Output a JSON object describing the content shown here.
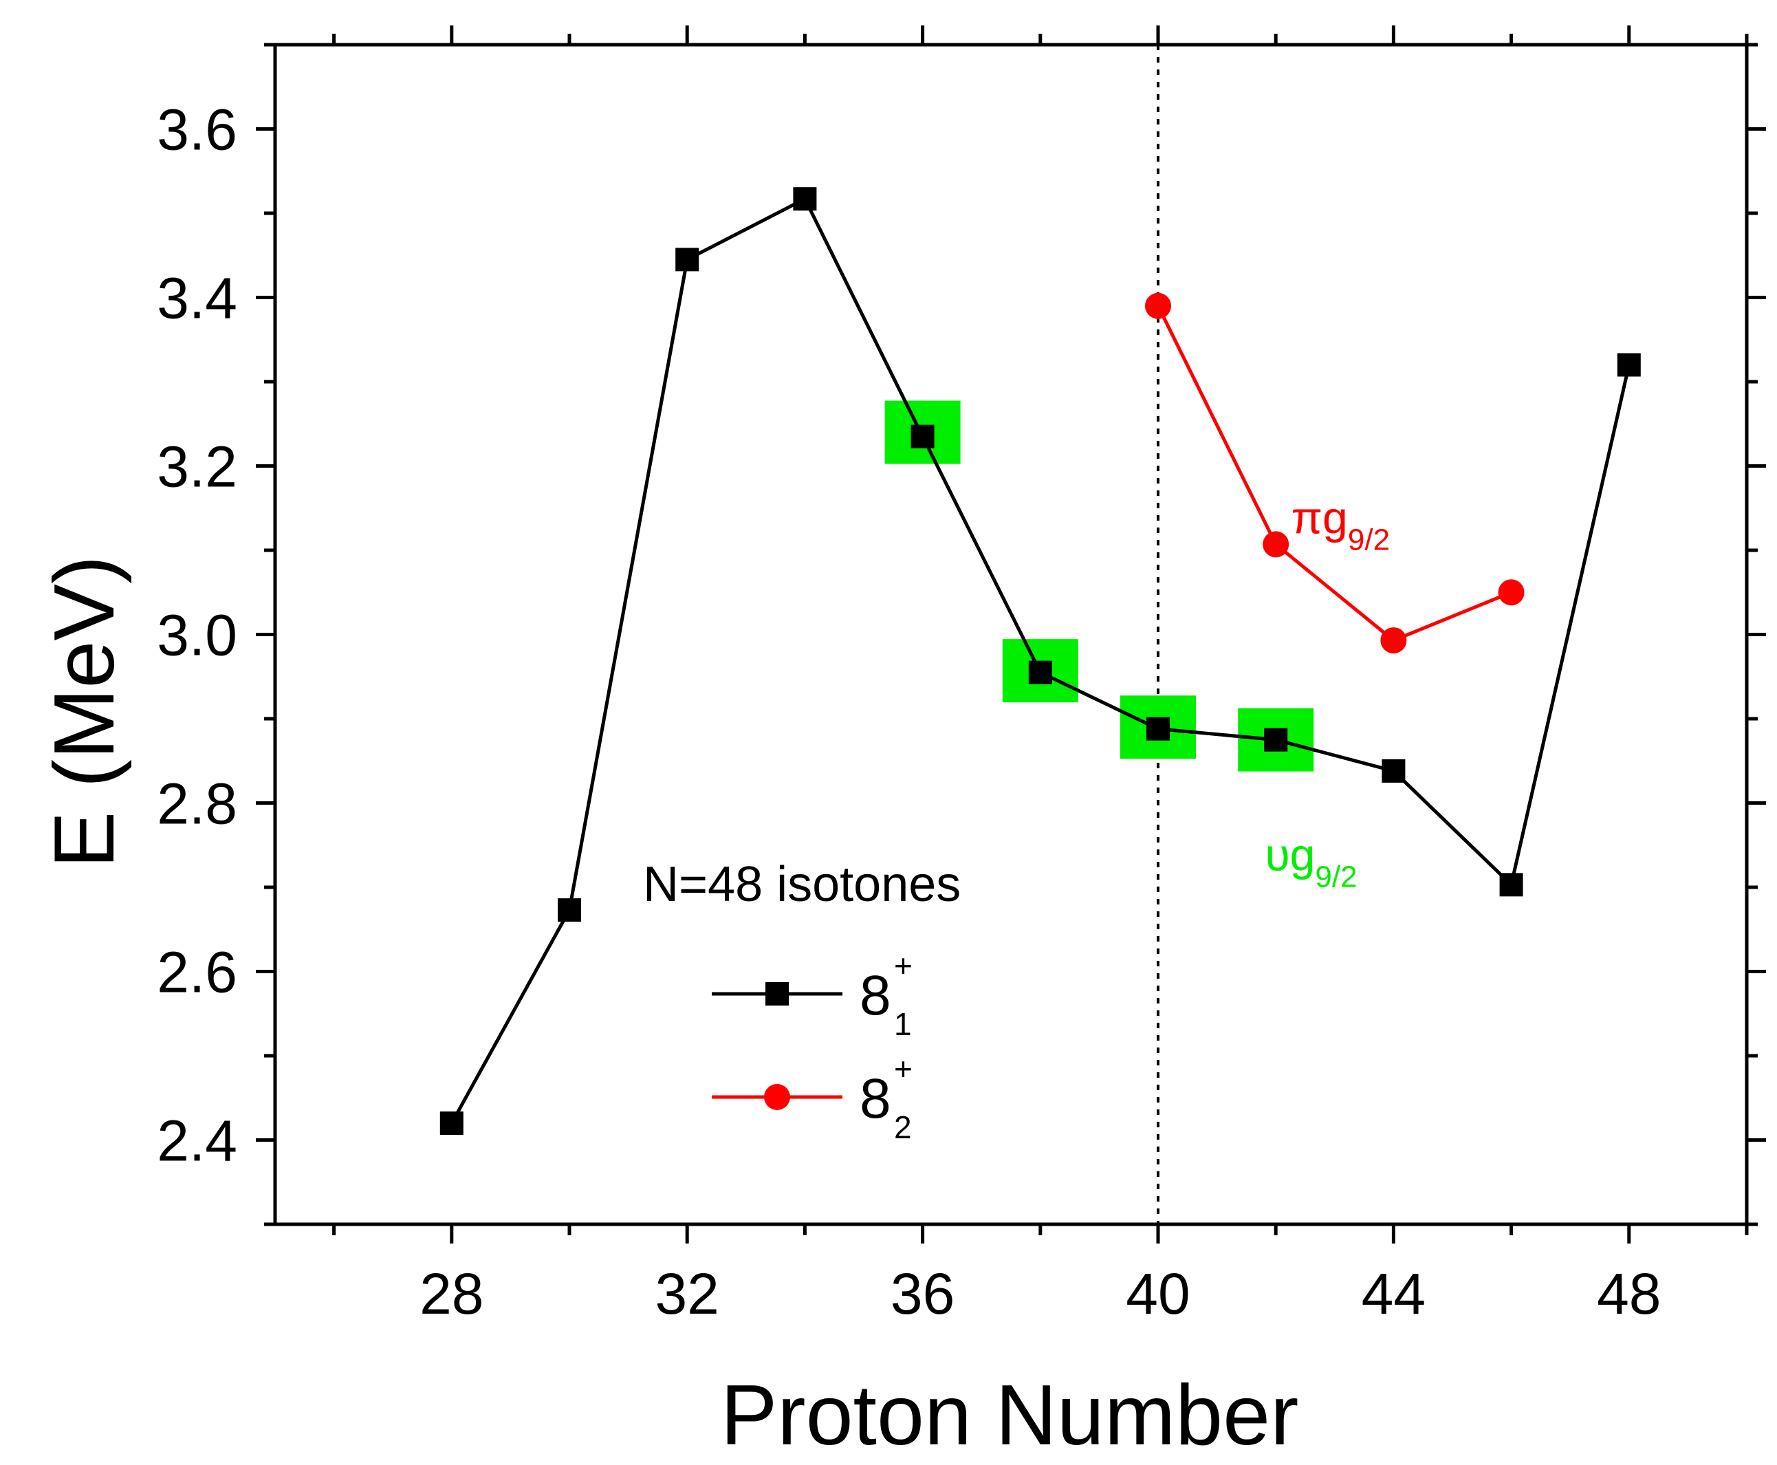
{
  "chart_data": {
    "type": "line",
    "title": "",
    "xlabel": "Proton Number",
    "ylabel": "E (MeV)",
    "xlim": [
      25,
      50
    ],
    "ylim": [
      2.3,
      3.7
    ],
    "xticks": [
      28,
      32,
      36,
      40,
      44,
      48
    ],
    "xminor": [
      26,
      30,
      34,
      38,
      42,
      46,
      50
    ],
    "yticks": [
      2.4,
      2.6,
      2.8,
      3.0,
      3.2,
      3.4,
      3.6
    ],
    "yminor": [
      2.3,
      2.5,
      2.7,
      2.9,
      3.1,
      3.3,
      3.5,
      3.7
    ],
    "ytick_labels": [
      "2.4",
      "2.6",
      "2.8",
      "3.0",
      "3.2",
      "3.4",
      "3.6"
    ],
    "grid": false,
    "series": [
      {
        "name": "8_1^+",
        "label_main": "8",
        "label_sup": "+",
        "label_sub": "1",
        "color": "#000000",
        "marker": "square",
        "x": [
          28,
          30,
          32,
          34,
          36,
          38,
          40,
          42,
          44,
          46,
          48
        ],
        "y": [
          2.42,
          2.673,
          3.445,
          3.517,
          3.235,
          2.955,
          2.888,
          2.875,
          2.838,
          2.703,
          3.32
        ]
      },
      {
        "name": "8_2^+",
        "label_main": "8",
        "label_sup": "+",
        "label_sub": "2",
        "color": "#ff0000",
        "marker": "circle",
        "x": [
          40,
          42,
          44,
          46
        ],
        "y": [
          3.39,
          3.107,
          2.993,
          3.05
        ]
      }
    ],
    "highlights": {
      "color": "#00ee00",
      "x": [
        36,
        38,
        40,
        42
      ],
      "y": [
        3.24,
        2.957,
        2.89,
        2.875
      ]
    },
    "reference_line": {
      "x": 40,
      "style": "dotted"
    },
    "legend": {
      "title": "N=48 isotones",
      "position": "lower-center"
    },
    "annotations": [
      {
        "main": "πg",
        "sub": "9/2",
        "color": "#ff0000",
        "x": 43.1,
        "y": 3.12
      },
      {
        "main": "υg",
        "sub": "9/2",
        "color": "#00ee00",
        "x": 42.6,
        "y": 2.72
      }
    ]
  }
}
